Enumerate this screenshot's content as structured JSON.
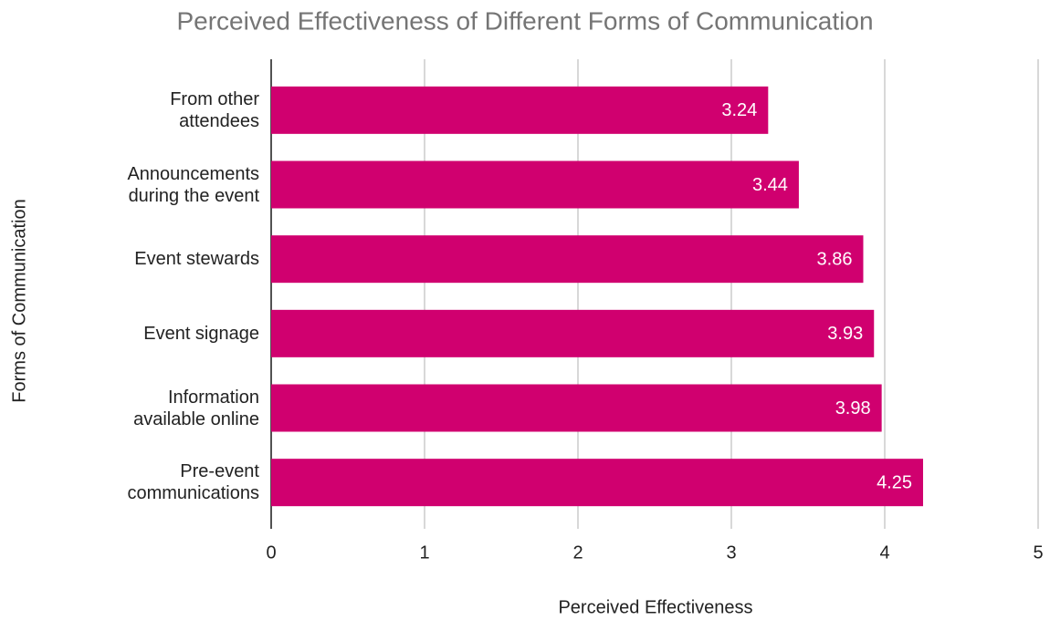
{
  "chart_data": {
    "type": "bar",
    "orientation": "horizontal",
    "title": "Perceived Effectiveness of Different Forms of Communication",
    "x_label": "Perceived Effectiveness",
    "y_label": "Forms of Communication",
    "categories": [
      "From other attendees",
      "Announcements during the event",
      "Event stewards",
      "Event signage",
      "Information available online",
      "Pre-event communications"
    ],
    "values": [
      3.24,
      3.44,
      3.86,
      3.93,
      3.98,
      4.25
    ],
    "color": "#d0006f",
    "xlim": [
      0,
      5
    ],
    "xticks": [
      0,
      1,
      2,
      3,
      4,
      5
    ],
    "grid": true
  }
}
